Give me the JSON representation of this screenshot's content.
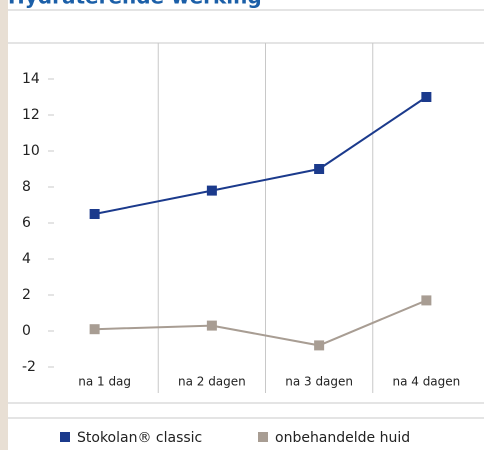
{
  "chart_data": {
    "type": "line",
    "title": "Hydraterende werking",
    "categories": [
      "na 1 dag",
      "na 2 dagen",
      "na 3 dagen",
      "na 4 dagen"
    ],
    "series": [
      {
        "name": "Stokolan® classic",
        "color": "#1b3a8c",
        "values": [
          6.5,
          7.8,
          9.0,
          13.0
        ]
      },
      {
        "name": "onbehandelde huid",
        "color": "#a89d93",
        "values": [
          0.1,
          0.3,
          -0.8,
          1.7
        ]
      }
    ],
    "ylim": [
      -2,
      14
    ],
    "yticks": [
      -2,
      0,
      2,
      4,
      6,
      8,
      10,
      12,
      14
    ],
    "grid": true,
    "legend": "bottom"
  }
}
